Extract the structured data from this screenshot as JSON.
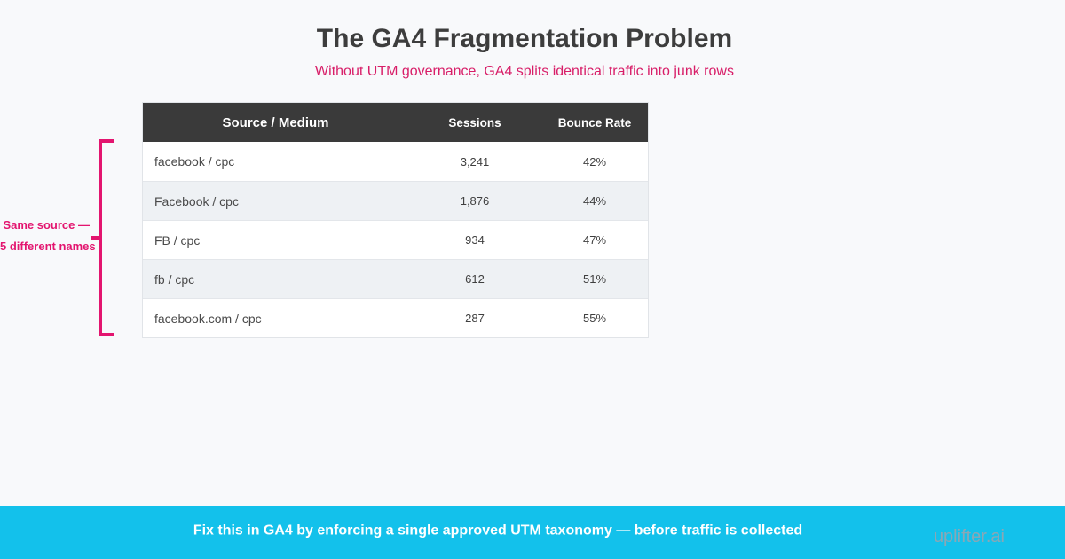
{
  "page": {
    "title": "The GA4 Fragmentation Problem",
    "subtitle": "Without UTM governance, GA4 splits identical traffic into junk rows"
  },
  "table": {
    "columns": [
      "Source / Medium",
      "Sessions",
      "Bounce Rate"
    ],
    "rows": [
      {
        "source_medium": "facebook / cpc",
        "sessions": "3,241",
        "bounce_rate": "42%"
      },
      {
        "source_medium": "Facebook / cpc",
        "sessions": "1,876",
        "bounce_rate": "44%"
      },
      {
        "source_medium": "FB / cpc",
        "sessions": "934",
        "bounce_rate": "47%"
      },
      {
        "source_medium": "fb / cpc",
        "sessions": "612",
        "bounce_rate": "51%"
      },
      {
        "source_medium": "facebook.com / cpc",
        "sessions": "287",
        "bounce_rate": "55%"
      }
    ]
  },
  "annotation": {
    "line1": "Same source —",
    "line2": "5 different names"
  },
  "footer": {
    "message": "Fix this in GA4 by enforcing a single approved UTM taxonomy — before traffic is collected",
    "brand": "uplifter.ai"
  },
  "colors": {
    "background": "#f8f9fb",
    "title_text": "#3d3d3d",
    "accent_pink": "#e3156f",
    "table_header_bg": "#3a3a3a",
    "table_stripe_bg": "#eef1f4",
    "footer_bar_bg": "#13c1eb"
  },
  "chart_data": {
    "type": "table",
    "title": "The GA4 Fragmentation Problem",
    "subtitle": "Without UTM governance, GA4 splits identical traffic into junk rows",
    "columns": [
      "Source / Medium",
      "Sessions",
      "Bounce Rate"
    ],
    "rows": [
      [
        "facebook / cpc",
        3241,
        "42%"
      ],
      [
        "Facebook / cpc",
        1876,
        "44%"
      ],
      [
        "FB / cpc",
        934,
        "47%"
      ],
      [
        "fb / cpc",
        612,
        "51%"
      ],
      [
        "facebook.com / cpc",
        287,
        "55%"
      ]
    ],
    "annotation": "Same source — 5 different names",
    "footer_note": "Fix this in GA4 by enforcing a single approved UTM taxonomy — before traffic is collected"
  }
}
